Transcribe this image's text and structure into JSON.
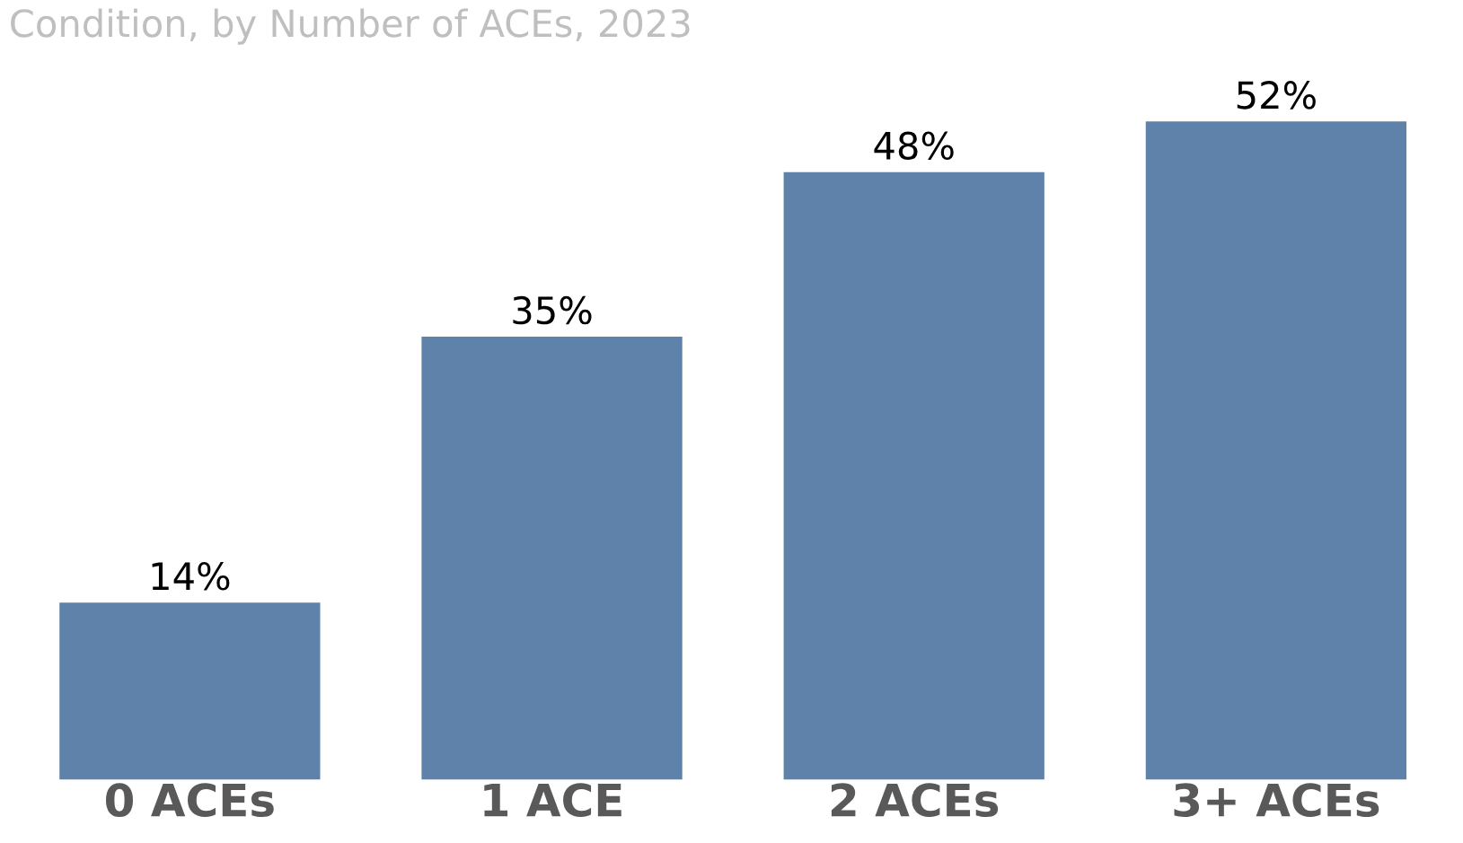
{
  "chart_data": {
    "type": "bar",
    "subtitle": "Condition, by Number of ACEs, 2023",
    "categories": [
      "0 ACEs",
      "1 ACE",
      "2 ACEs",
      "3+ ACEs"
    ],
    "values": [
      14,
      35,
      48,
      52
    ],
    "color": "#5f82ab",
    "value_labels": [
      "14%",
      "35%",
      "48%",
      "52%"
    ],
    "tick_labels": "x",
    "grid": false,
    "legend": false
  }
}
